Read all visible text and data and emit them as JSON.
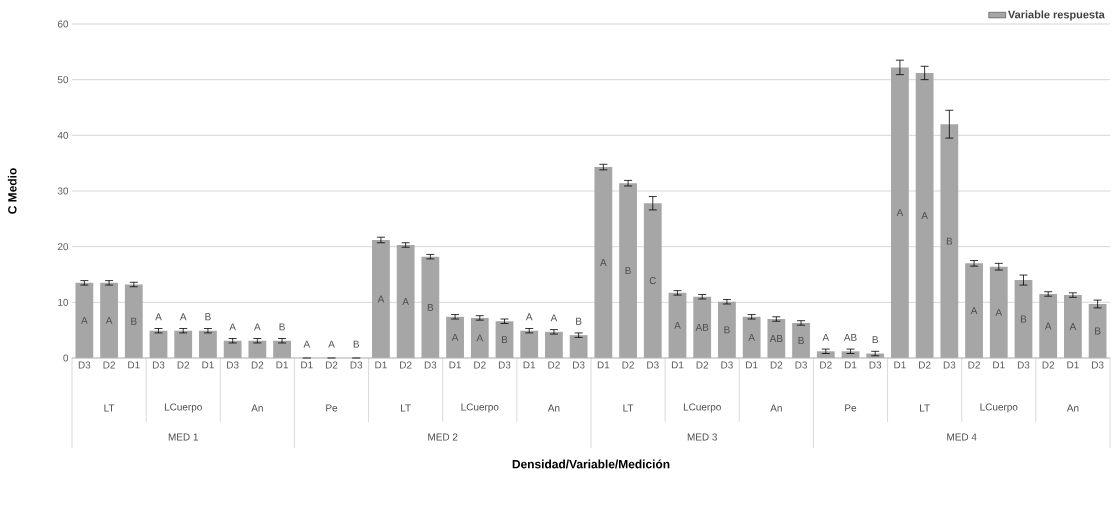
{
  "chart_data": {
    "type": "bar",
    "ylabel": "C Medio",
    "categories": [
      "D3",
      "D2",
      "D1",
      "D3",
      "D2",
      "D1",
      "D3",
      "D2",
      "D1",
      "D1",
      "D2",
      "D3",
      "D1",
      "D2",
      "D3",
      "D1",
      "D2",
      "D3",
      "D1",
      "D2",
      "D3",
      "D1",
      "D2",
      "D3",
      "D1",
      "D2",
      "D3",
      "D1",
      "D2",
      "D3",
      "D2",
      "D1",
      "D3",
      "D1",
      "D2",
      "D3",
      "D2",
      "D1",
      "D3",
      "D2",
      "D1",
      "D3"
    ],
    "series": [
      {
        "name": "Variable respuesta",
        "color": "#a6a6a6",
        "values": [
          13.5,
          13.5,
          13.2,
          4.9,
          4.9,
          4.9,
          3.1,
          3.1,
          3.1,
          0,
          0,
          0,
          21.2,
          20.3,
          18.2,
          7.4,
          7.2,
          6.6,
          4.9,
          4.7,
          4.1,
          34.3,
          31.4,
          27.8,
          11.7,
          11.0,
          10.1,
          7.4,
          7.0,
          6.3,
          1.2,
          1.2,
          0.8,
          52.2,
          51.2,
          42.0,
          17.0,
          16.4,
          14.0,
          11.5,
          11.3,
          9.7
        ],
        "errors": [
          0.4,
          0.4,
          0.4,
          0.4,
          0.4,
          0.4,
          0.4,
          0.4,
          0.4,
          null,
          null,
          null,
          0.5,
          0.4,
          0.4,
          0.4,
          0.4,
          0.4,
          0.4,
          0.4,
          0.4,
          0.5,
          0.5,
          1.2,
          0.4,
          0.4,
          0.4,
          0.4,
          0.4,
          0.4,
          0.4,
          0.4,
          0.4,
          1.3,
          1.2,
          2.5,
          0.5,
          0.6,
          0.9,
          0.4,
          0.4,
          0.7
        ],
        "value_labels": [
          "A",
          "A",
          "B",
          "A",
          "A",
          "B",
          "A",
          "A",
          "B",
          "A",
          "A",
          "B",
          "A",
          "A",
          "B",
          "A",
          "A",
          "B",
          "A",
          "A",
          "B",
          "A",
          "B",
          "C",
          "A",
          "AB",
          "B",
          "A",
          "AB",
          "B",
          "A",
          "AB",
          "B",
          "A",
          "A",
          "B",
          "A",
          "A",
          "B",
          "A",
          "A",
          "B"
        ]
      }
    ],
    "annotations": [
      "LT",
      "LCuerpo",
      "An",
      "Pe",
      "LT",
      "LCuerpo",
      "An",
      "LT",
      "LCuerpo",
      "An",
      "Pe",
      "LT",
      "LCuerpo",
      "An",
      "MED 1",
      "MED 2",
      "MED 3",
      "MED 4",
      "Densidad/Variable/Medición"
    ],
    "ylim": [
      0,
      60
    ],
    "yticks": [
      0,
      10,
      20,
      30,
      40,
      50,
      60
    ],
    "grid": "y",
    "legend": "top right"
  }
}
